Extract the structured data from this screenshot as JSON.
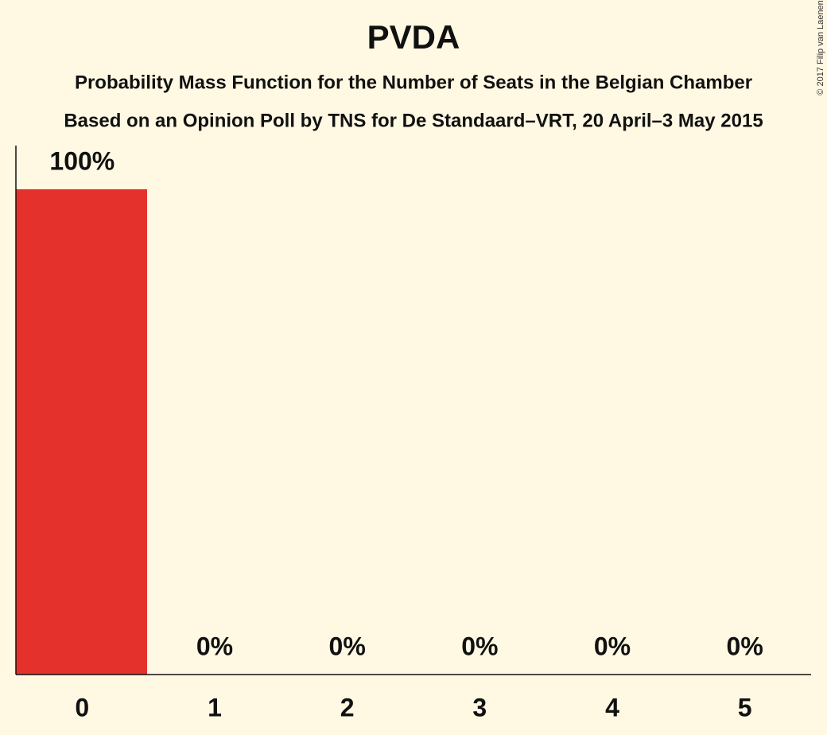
{
  "chart_data": {
    "type": "bar",
    "title": "PVDA",
    "subtitle": [
      "Probability Mass Function for the Number of Seats in the Belgian Chamber",
      "Based on an Opinion Poll by TNS for De Standaard–VRT, 20 April–3 May 2015"
    ],
    "copyright": "© 2017 Filip van Laenen",
    "categories": [
      "0",
      "1",
      "2",
      "3",
      "4",
      "5"
    ],
    "values": [
      100,
      0,
      0,
      0,
      0,
      0
    ],
    "value_labels": [
      "100%",
      "0%",
      "0%",
      "0%",
      "0%",
      "0%"
    ],
    "color": "#e5312c",
    "ylim": [
      0,
      109
    ]
  }
}
